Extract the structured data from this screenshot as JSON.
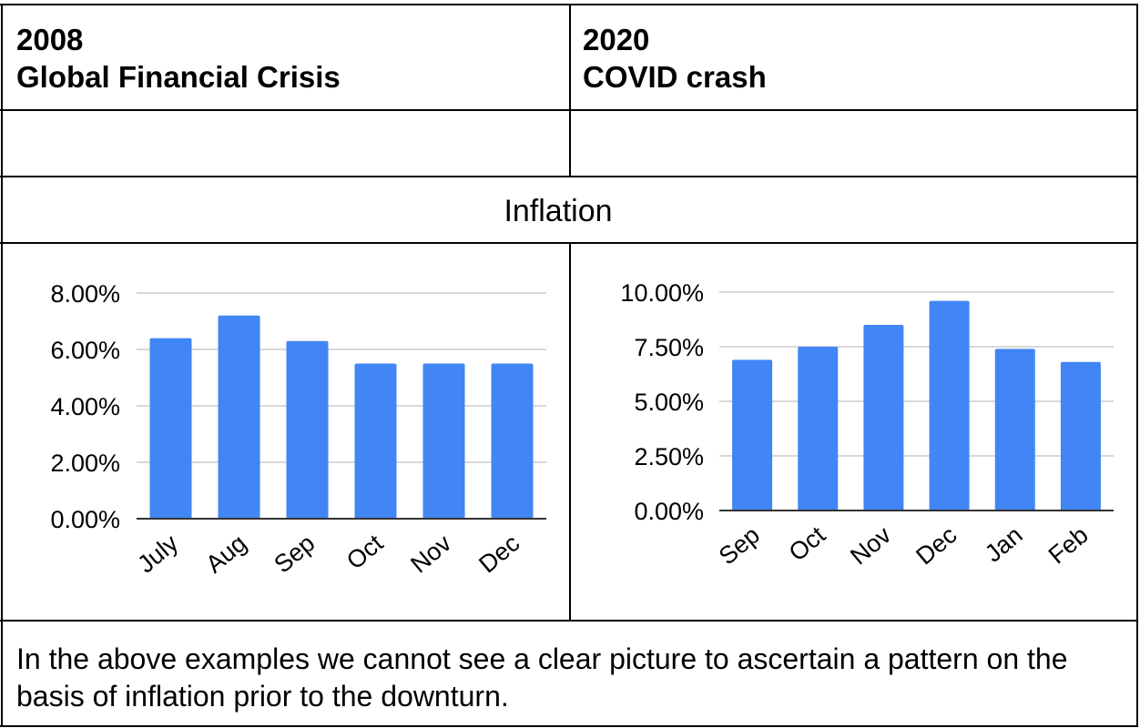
{
  "header": {
    "left": {
      "year": "2008",
      "event": "Global Financial Crisis"
    },
    "right": {
      "year": "2020",
      "event": "COVID crash"
    }
  },
  "section_title": "Inflation",
  "note": "In the above examples we cannot see a clear picture to ascertain a pattern on the basis of inflation prior to the downturn.",
  "colors": {
    "bar": "#4285f4",
    "grid": "#cccccc",
    "axis": "#333333",
    "border": "#000000"
  },
  "chart_data": [
    {
      "type": "bar",
      "title": "",
      "xlabel": "",
      "ylabel": "",
      "categories": [
        "July",
        "Aug",
        "Sep",
        "Oct",
        "Nov",
        "Dec"
      ],
      "values": [
        6.4,
        7.2,
        6.3,
        5.5,
        5.5,
        5.5
      ],
      "ylim": [
        0,
        8
      ],
      "yticks": [
        0,
        2,
        4,
        6,
        8
      ],
      "ytick_labels": [
        "0.00%",
        "2.00%",
        "4.00%",
        "6.00%",
        "8.00%"
      ],
      "grid": true,
      "legend": "none"
    },
    {
      "type": "bar",
      "title": "",
      "xlabel": "",
      "ylabel": "",
      "categories": [
        "Sep",
        "Oct",
        "Nov",
        "Dec",
        "Jan",
        "Feb"
      ],
      "values": [
        6.9,
        7.5,
        8.5,
        9.6,
        7.4,
        6.8
      ],
      "ylim": [
        0,
        10
      ],
      "yticks": [
        0,
        2.5,
        5,
        7.5,
        10
      ],
      "ytick_labels": [
        "0.00%",
        "2.50%",
        "5.00%",
        "7.50%",
        "10.00%"
      ],
      "grid": true,
      "legend": "none"
    }
  ]
}
